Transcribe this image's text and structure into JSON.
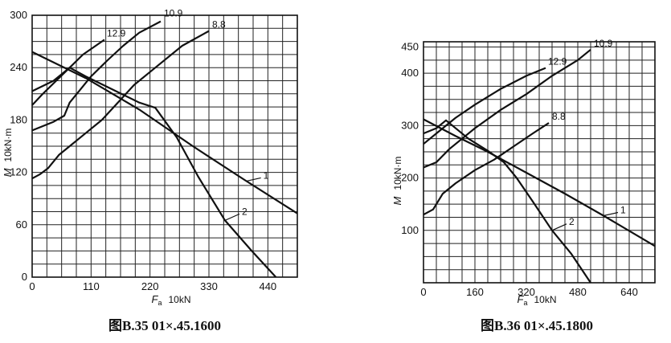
{
  "chart_data": [
    {
      "type": "line",
      "caption": "图B.35   01×.45.1600",
      "xlabel_sym": "F",
      "xlabel_sub": "a",
      "xlabel_unit": "10kN",
      "ylabel_sym": "M",
      "ylabel_unit": "10kN·m",
      "xlim": [
        0,
        495
      ],
      "ylim": [
        0,
        300
      ],
      "x_ticks": [
        0,
        110,
        220,
        330,
        440
      ],
      "y_ticks": [
        0,
        60,
        120,
        180,
        240,
        300
      ],
      "grid_x_step": 27.5,
      "grid_y_step": 15,
      "series": [
        {
          "name": "12.9",
          "points": [
            [
              0,
              197
            ],
            [
              20,
              210
            ],
            [
              45,
              225
            ],
            [
              70,
              240
            ],
            [
              95,
              255
            ],
            [
              135,
              272
            ]
          ]
        },
        {
          "name": "10.9",
          "points": [
            [
              0,
              168
            ],
            [
              40,
              178
            ],
            [
              60,
              185
            ],
            [
              70,
              200
            ],
            [
              90,
              215
            ],
            [
              110,
              230
            ],
            [
              140,
              248
            ],
            [
              170,
              265
            ],
            [
              200,
              280
            ],
            [
              240,
              293
            ]
          ]
        },
        {
          "name": "8.8",
          "points": [
            [
              0,
              113
            ],
            [
              15,
              118
            ],
            [
              30,
              125
            ],
            [
              50,
              140
            ],
            [
              70,
              150
            ],
            [
              100,
              165
            ],
            [
              130,
              180
            ],
            [
              160,
              200
            ],
            [
              190,
              220
            ],
            [
              230,
              240
            ],
            [
              280,
              265
            ],
            [
              330,
              282
            ]
          ]
        },
        {
          "name": "1",
          "points": [
            [
              0,
              258
            ],
            [
              100,
              228
            ],
            [
              200,
              192
            ],
            [
              300,
              150
            ],
            [
              400,
              110
            ],
            [
              495,
              73
            ]
          ]
        },
        {
          "name": "2",
          "points": [
            [
              0,
              213
            ],
            [
              40,
              225
            ],
            [
              70,
              240
            ],
            [
              100,
              230
            ],
            [
              150,
              215
            ],
            [
              200,
              200
            ],
            [
              230,
              194
            ],
            [
              270,
              160
            ],
            [
              310,
              115
            ],
            [
              360,
              65
            ],
            [
              410,
              30
            ],
            [
              455,
              0
            ]
          ]
        }
      ]
    },
    {
      "type": "line",
      "caption": "图B.36   01×.45.1800",
      "xlabel_sym": "F",
      "xlabel_sub": "a",
      "xlabel_unit": "10kN",
      "ylabel_sym": "M",
      "ylabel_unit": "10kN·m",
      "xlim": [
        0,
        720
      ],
      "ylim": [
        0,
        460
      ],
      "x_ticks": [
        0,
        160,
        320,
        480,
        640
      ],
      "y_ticks": [
        100,
        200,
        300,
        400,
        450
      ],
      "grid_x_step": 40,
      "grid_y_step": 25,
      "series": [
        {
          "name": "12.9",
          "points": [
            [
              0,
              265
            ],
            [
              50,
              290
            ],
            [
              100,
              315
            ],
            [
              160,
              340
            ],
            [
              240,
              370
            ],
            [
              320,
              395
            ],
            [
              380,
              410
            ]
          ]
        },
        {
          "name": "10.9",
          "points": [
            [
              0,
              220
            ],
            [
              40,
              230
            ],
            [
              80,
              255
            ],
            [
              160,
              295
            ],
            [
              240,
              330
            ],
            [
              320,
              360
            ],
            [
              400,
              395
            ],
            [
              480,
              425
            ],
            [
              520,
              445
            ]
          ]
        },
        {
          "name": "8.8",
          "points": [
            [
              0,
              130
            ],
            [
              30,
              140
            ],
            [
              60,
              170
            ],
            [
              100,
              190
            ],
            [
              160,
              215
            ],
            [
              220,
              235
            ],
            [
              280,
              260
            ],
            [
              340,
              285
            ],
            [
              390,
              305
            ]
          ]
        },
        {
          "name": "1",
          "points": [
            [
              0,
              312
            ],
            [
              100,
              280
            ],
            [
              200,
              250
            ],
            [
              320,
              210
            ],
            [
              440,
              170
            ],
            [
              560,
              128
            ],
            [
              720,
              70
            ]
          ]
        },
        {
          "name": "2",
          "points": [
            [
              0,
              285
            ],
            [
              40,
              295
            ],
            [
              70,
              310
            ],
            [
              140,
              275
            ],
            [
              200,
              252
            ],
            [
              250,
              230
            ],
            [
              290,
              200
            ],
            [
              340,
              155
            ],
            [
              400,
              100
            ],
            [
              460,
              55
            ],
            [
              520,
              0
            ]
          ]
        }
      ]
    }
  ]
}
